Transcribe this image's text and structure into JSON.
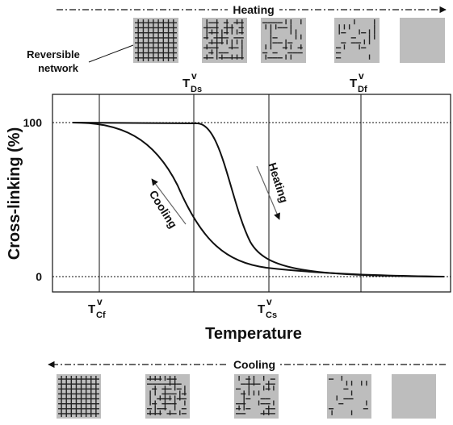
{
  "top_arrow": {
    "label": "Heating"
  },
  "bottom_arrow": {
    "label": "Cooling"
  },
  "network_label": {
    "lines": [
      "Reversible",
      "network"
    ]
  },
  "y_axis": {
    "label": "Cross-linking (%)",
    "ticks": [
      "100",
      "0"
    ]
  },
  "x_axis": {
    "label": "Temperature"
  },
  "temperature_marks": [
    {
      "base": "T",
      "sub": "Ds",
      "sup": "v"
    },
    {
      "base": "T",
      "sub": "Df",
      "sup": "v"
    },
    {
      "base": "T",
      "sub": "Cf",
      "sup": "v"
    },
    {
      "base": "T",
      "sub": "Cs",
      "sup": "v"
    }
  ],
  "curve_labels": {
    "heating": "Heating",
    "cooling": "Cooling"
  }
}
